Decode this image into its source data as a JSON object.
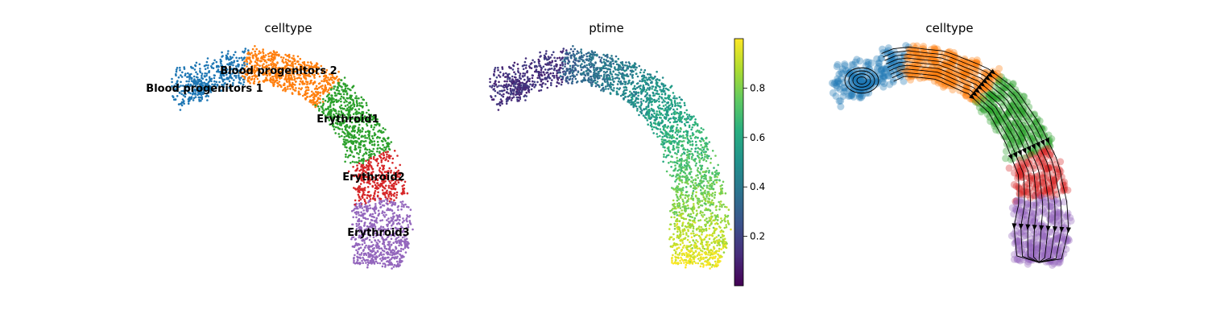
{
  "chart_data": [
    {
      "type": "scatter",
      "title": "celltype",
      "xlabel": "",
      "ylabel": "",
      "axes_visible": false,
      "color_by": "celltype",
      "categories": [
        {
          "name": "Blood progenitors 1",
          "color": "#1f77b4"
        },
        {
          "name": "Blood progenitors 2",
          "color": "#ff7f0e"
        },
        {
          "name": "Erythroid1",
          "color": "#2ca02c"
        },
        {
          "name": "Erythroid2",
          "color": "#d62728"
        },
        {
          "name": "Erythroid3",
          "color": "#9467bd"
        }
      ],
      "legend": "on data"
    },
    {
      "type": "scatter",
      "title": "ptime",
      "xlabel": "",
      "ylabel": "",
      "axes_visible": false,
      "color_by": "ptime",
      "colormap": "viridis",
      "colorbar": {
        "range": [
          0.0,
          1.0
        ],
        "ticks": [
          0.2,
          0.4,
          0.6,
          0.8
        ],
        "tick_labels": [
          "0.2",
          "0.4",
          "0.6",
          "0.8"
        ]
      }
    },
    {
      "type": "scatter",
      "title": "celltype",
      "xlabel": "",
      "ylabel": "",
      "axes_visible": false,
      "color_by": "celltype",
      "overlay": "velocity streamlines (black arrows)",
      "categories": [
        {
          "name": "Blood progenitors 1",
          "color": "#1f77b4"
        },
        {
          "name": "Blood progenitors 2",
          "color": "#ff7f0e"
        },
        {
          "name": "Erythroid1",
          "color": "#2ca02c"
        },
        {
          "name": "Erythroid2",
          "color": "#d62728"
        },
        {
          "name": "Erythroid3",
          "color": "#9467bd"
        }
      ]
    }
  ]
}
